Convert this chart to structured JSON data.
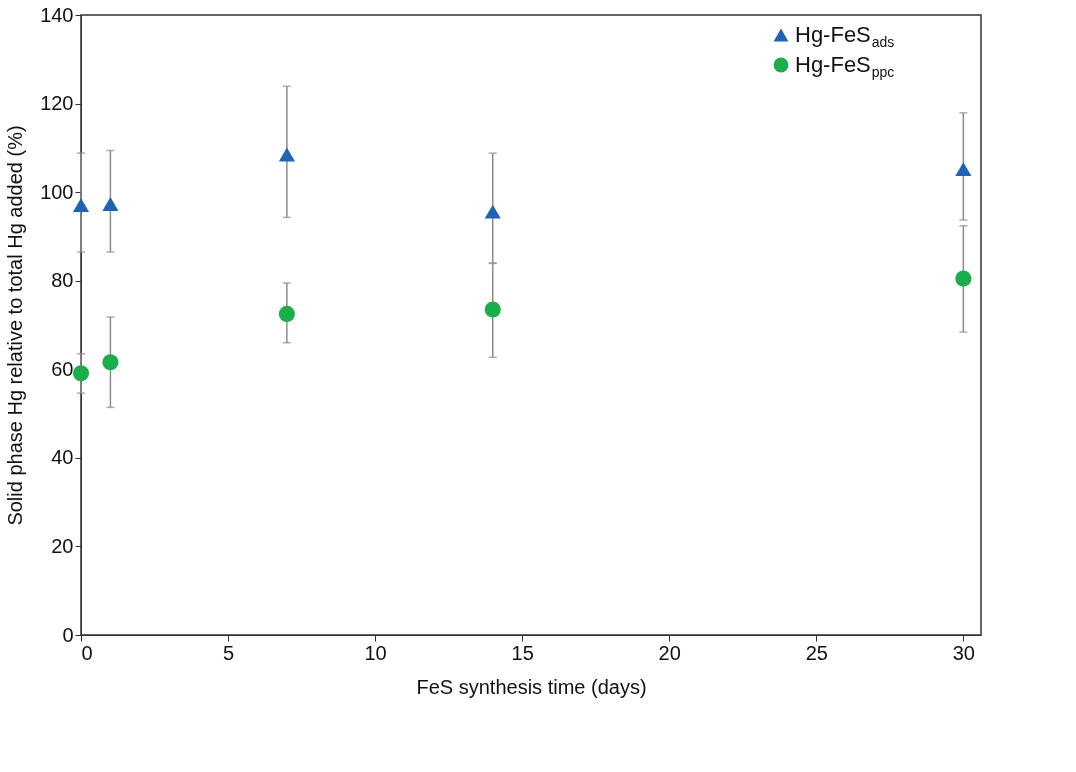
{
  "chart_data": {
    "type": "scatter",
    "xlabel": "FeS synthesis time (days)",
    "ylabel": "Solid phase Hg relative to total Hg added (%)",
    "xlim": [
      0,
      30.6
    ],
    "xticks": [
      0,
      5,
      10,
      15,
      20,
      25,
      30
    ],
    "ylim": [
      0,
      140
    ],
    "yticks": [
      0,
      20,
      40,
      60,
      80,
      100,
      120,
      140
    ],
    "grid": false,
    "legend": "top right",
    "series": [
      {
        "name": "Hg-FeS$_{ads}$",
        "color": "#1f63b5",
        "marker": "triangle",
        "x": [
          0,
          1,
          7,
          14,
          30
        ],
        "values": [
          97.1,
          97.3,
          108.5,
          95.6,
          105.2
        ],
        "errors": [
          [
            86.5,
            108.8
          ],
          [
            86.5,
            109.4
          ],
          [
            94.3,
            123.9
          ],
          [
            83.9,
            108.8
          ],
          [
            93.7,
            117.9
          ]
        ]
      },
      {
        "name": "Hg-FeS$_{ppc}$",
        "color": "#1aad4b",
        "marker": "circle",
        "x": [
          0,
          1,
          7,
          14,
          30
        ],
        "values": [
          59.1,
          61.6,
          72.5,
          73.5,
          80.5
        ],
        "errors": [
          [
            54.6,
            63.5
          ],
          [
            51.4,
            71.8
          ],
          [
            66,
            79.5
          ],
          [
            62.7,
            84
          ],
          [
            68.4,
            92.4
          ]
        ]
      }
    ]
  }
}
